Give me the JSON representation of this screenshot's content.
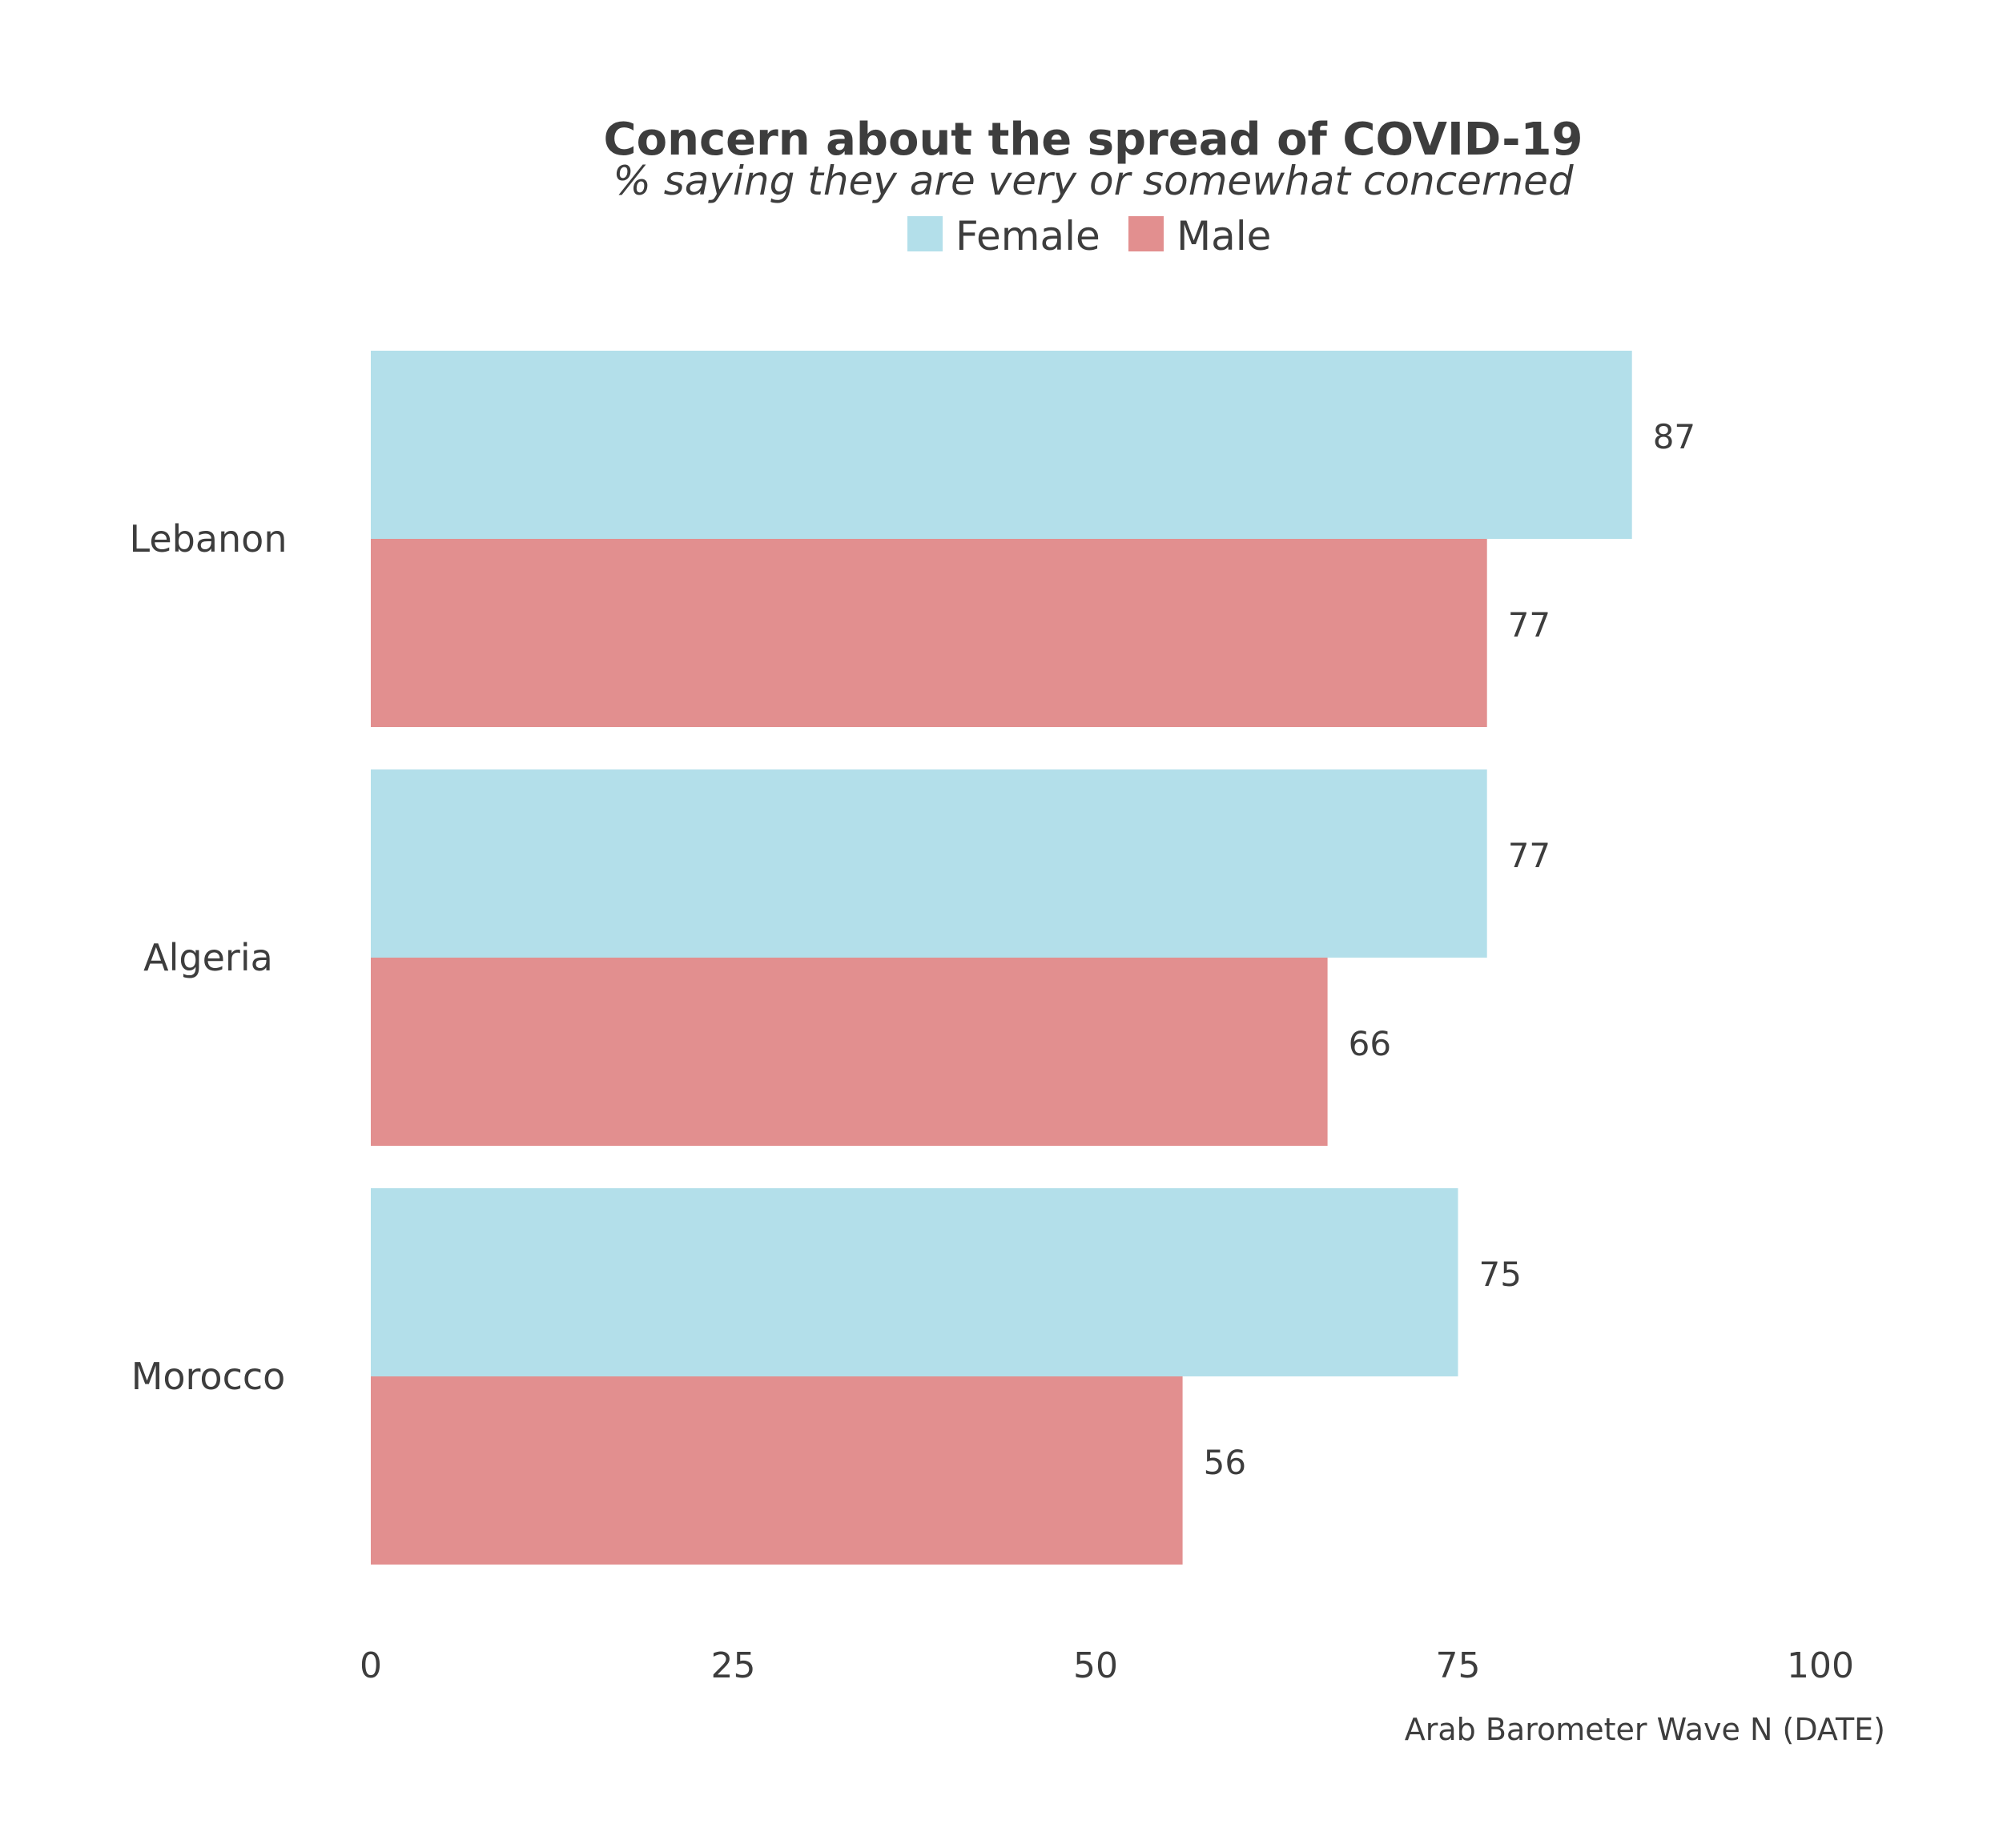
{
  "chart_data": {
    "type": "bar",
    "orientation": "horizontal",
    "title": "Concern about the spread of COVID-19",
    "subtitle": "% saying they are very or somewhat concerned",
    "categories": [
      "Lebanon",
      "Algeria",
      "Morocco"
    ],
    "series": [
      {
        "name": "Female",
        "color": "#b3dfea",
        "values": [
          87,
          77,
          75
        ]
      },
      {
        "name": "Male",
        "color": "#e28f8f",
        "values": [
          77,
          66,
          56
        ]
      }
    ],
    "xlim": [
      0,
      100
    ],
    "xticks": [
      "0",
      "25",
      "50",
      "75",
      "100"
    ],
    "xlabel": "",
    "ylabel": "",
    "grid": false,
    "legend_position": "top",
    "data_labels": true,
    "caption": "Arab Barometer Wave N (DATE)"
  }
}
